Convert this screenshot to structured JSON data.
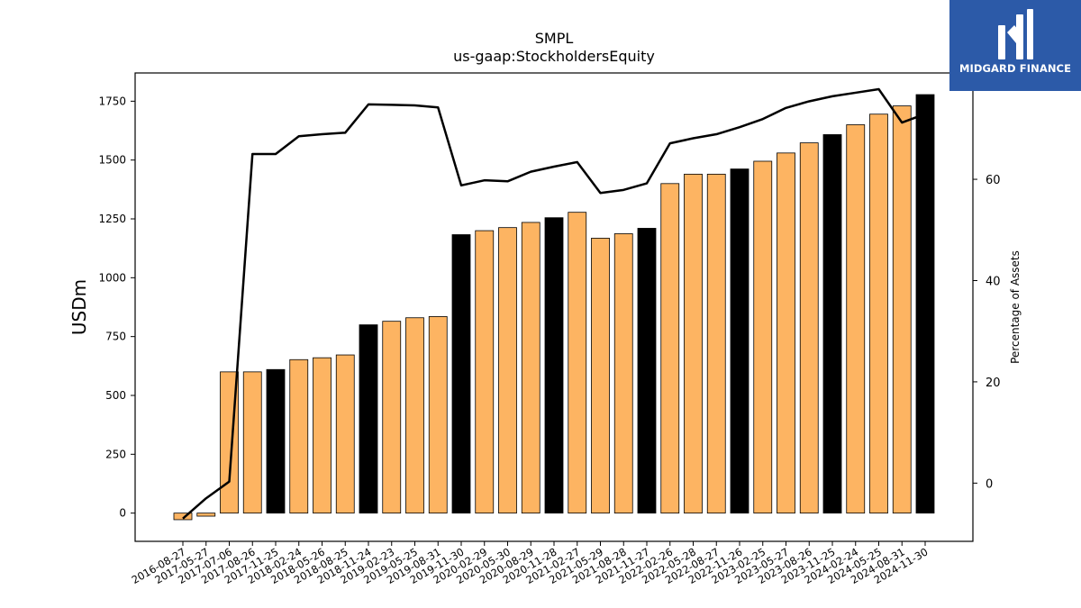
{
  "brand": {
    "name": "MIDGARD FINANCE",
    "logo_icon": "midgard-logo-icon",
    "color": "#2c5aa8"
  },
  "chart_data": {
    "type": "bar",
    "title": "SMPL",
    "subtitle": "us-gaap:StockholdersEquity",
    "ylabel": "USDm",
    "y2label": "Percentage of Assets",
    "ylim": [
      -120,
      1870
    ],
    "y2lim": [
      -11.5,
      81
    ],
    "yticks": [
      0,
      250,
      500,
      750,
      1000,
      1250,
      1500,
      1750
    ],
    "y2ticks": [
      0,
      20,
      40,
      60
    ],
    "grid": false,
    "colors": {
      "regular": "#fdb462",
      "highlight": "#000000",
      "line": "#000000"
    },
    "categories": [
      "2016-08-27",
      "2017-05-27",
      "2017-07-06",
      "2017-08-26",
      "2017-11-25",
      "2018-02-24",
      "2018-05-26",
      "2018-08-25",
      "2018-11-24",
      "2019-02-23",
      "2019-05-25",
      "2019-08-31",
      "2019-11-30",
      "2020-02-29",
      "2020-05-30",
      "2020-08-29",
      "2020-11-28",
      "2021-02-27",
      "2021-05-29",
      "2021-08-28",
      "2021-11-27",
      "2022-02-26",
      "2022-05-28",
      "2022-08-27",
      "2022-11-26",
      "2023-02-25",
      "2023-05-27",
      "2023-08-26",
      "2023-11-25",
      "2024-02-24",
      "2024-05-25",
      "2024-08-31",
      "2024-11-30"
    ],
    "series": [
      {
        "type": "bar",
        "values": [
          -28,
          -13,
          600,
          600,
          610,
          652,
          660,
          672,
          800,
          815,
          830,
          835,
          1183,
          1200,
          1213,
          1235,
          1255,
          1278,
          1168,
          1187,
          1210,
          1400,
          1440,
          1440,
          1462,
          1495,
          1530,
          1573,
          1608,
          1650,
          1695,
          1730,
          1778
        ],
        "highlight": [
          false,
          false,
          false,
          false,
          true,
          false,
          false,
          false,
          true,
          false,
          false,
          false,
          true,
          false,
          false,
          false,
          true,
          false,
          false,
          false,
          true,
          false,
          false,
          false,
          true,
          false,
          false,
          false,
          true,
          false,
          false,
          false,
          true
        ]
      },
      {
        "type": "line",
        "axis": "right",
        "values": [
          -7,
          -3,
          0.3,
          65,
          65,
          68.5,
          68.9,
          69.2,
          74.8,
          74.7,
          74.6,
          74.2,
          58.8,
          59.8,
          59.6,
          61.5,
          62.5,
          63.4,
          57.3,
          57.9,
          59.2,
          67.1,
          68.1,
          68.9,
          70.3,
          71.9,
          74.1,
          75.4,
          76.4,
          77.1,
          77.8,
          71.2,
          72.9
        ]
      }
    ]
  }
}
